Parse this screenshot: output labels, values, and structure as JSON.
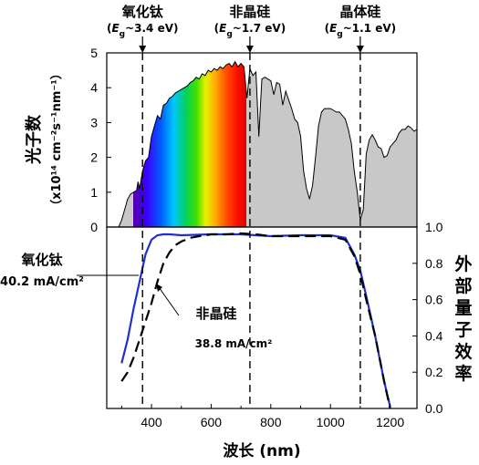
{
  "chart_data": [
    {
      "type": "area",
      "ylabel_main": "光子数",
      "ylabel_unit": "（x10¹⁴ cm⁻²s⁻¹nm⁻¹）",
      "xlim": [
        250,
        1290
      ],
      "ylim": [
        0,
        5
      ],
      "y_ticks": [
        "0",
        "1",
        "2",
        "3",
        "4",
        "5"
      ],
      "series": [
        {
          "x": [
            290,
            300,
            310,
            320,
            330,
            340,
            350,
            355,
            360,
            370,
            380,
            390,
            400,
            410,
            420,
            430,
            440,
            450,
            460,
            470,
            480,
            490,
            500,
            510,
            520,
            530,
            540,
            550,
            560,
            570,
            580,
            590,
            600,
            610,
            620,
            630,
            640,
            650,
            660,
            670,
            680,
            690,
            700,
            710,
            720,
            730,
            740,
            750,
            760,
            770,
            780,
            790,
            800,
            810,
            820,
            830,
            840,
            850,
            860,
            870,
            880,
            890,
            900,
            910,
            920,
            930,
            940,
            950,
            960,
            970,
            980,
            990,
            1000,
            1010,
            1020,
            1030,
            1040,
            1050,
            1060,
            1070,
            1080,
            1090,
            1100,
            1110,
            1120,
            1130,
            1140,
            1150,
            1160,
            1170,
            1180,
            1190,
            1200,
            1210,
            1220,
            1230,
            1240,
            1250,
            1260,
            1270,
            1280,
            1290
          ],
          "y": [
            0,
            0.2,
            0.5,
            0.8,
            0.95,
            1.0,
            1.05,
            1.3,
            1.1,
            1.6,
            1.9,
            2.0,
            2.6,
            2.9,
            3.2,
            3.1,
            3.5,
            3.55,
            3.7,
            3.75,
            3.85,
            3.9,
            3.95,
            4.0,
            4.05,
            4.15,
            4.2,
            4.3,
            4.25,
            4.4,
            4.35,
            4.5,
            4.45,
            4.55,
            4.5,
            4.6,
            4.55,
            4.65,
            4.7,
            4.6,
            4.75,
            4.6,
            4.7,
            4.6,
            3.7,
            4.55,
            4.35,
            4.45,
            2.6,
            4.25,
            4.3,
            4.25,
            4.2,
            3.8,
            4.15,
            4.1,
            3.5,
            3.9,
            3.65,
            3.4,
            3.1,
            3.0,
            2.6,
            1.6,
            1.1,
            0.8,
            1.2,
            2.0,
            2.9,
            3.3,
            3.4,
            3.4,
            3.4,
            3.35,
            3.3,
            3.3,
            3.2,
            3.1,
            2.8,
            2.4,
            1.6,
            1.0,
            0.2,
            0.5,
            2.1,
            2.5,
            2.65,
            2.5,
            2.3,
            2.25,
            2.0,
            2.05,
            2.3,
            2.4,
            2.5,
            2.7,
            2.8,
            2.8,
            2.9,
            2.85,
            2.75,
            2.8
          ]
        }
      ]
    },
    {
      "type": "line",
      "xlabel": "波长 (nm)",
      "ylabel": "外部量子效率",
      "xlim": [
        250,
        1290
      ],
      "ylim": [
        0,
        1.0
      ],
      "x_ticks": [
        "400",
        "600",
        "800",
        "1000",
        "1200"
      ],
      "y_ticks": [
        "0.0",
        "0.2",
        "0.4",
        "0.6",
        "0.8",
        "1.0"
      ],
      "series": [
        {
          "name": "氧化钛",
          "x": [
            300,
            320,
            340,
            360,
            380,
            400,
            420,
            440,
            460,
            500,
            600,
            700,
            800,
            900,
            1000,
            1050,
            1080,
            1100,
            1120,
            1150,
            1180,
            1200
          ],
          "y": [
            0.25,
            0.38,
            0.55,
            0.7,
            0.85,
            0.93,
            0.955,
            0.96,
            0.96,
            0.955,
            0.96,
            0.96,
            0.95,
            0.955,
            0.955,
            0.94,
            0.85,
            0.76,
            0.62,
            0.4,
            0.15,
            0.01
          ]
        },
        {
          "name": "非晶硅",
          "x": [
            300,
            320,
            340,
            360,
            380,
            400,
            420,
            440,
            460,
            480,
            500,
            530,
            560,
            600,
            650,
            700,
            750,
            800,
            900,
            1000,
            1050,
            1080,
            1100,
            1120,
            1150,
            1180,
            1200
          ],
          "y": [
            0.15,
            0.2,
            0.28,
            0.38,
            0.48,
            0.58,
            0.7,
            0.8,
            0.86,
            0.9,
            0.92,
            0.94,
            0.95,
            0.96,
            0.96,
            0.965,
            0.96,
            0.95,
            0.95,
            0.95,
            0.93,
            0.84,
            0.74,
            0.6,
            0.4,
            0.15,
            0.0
          ]
        }
      ]
    }
  ],
  "markers": [
    {
      "name": "氧化钛",
      "eg": "~3.4 eV",
      "x": 370
    },
    {
      "name": "非晶硅",
      "eg": "~1.7 eV",
      "x": 730
    },
    {
      "name": "晶体硅",
      "eg": "~1.1 eV",
      "x": 1100
    }
  ],
  "annotations": {
    "tio2_name": "氧化钛",
    "tio2_current": "40.2 mA/cm²",
    "asi_name": "非晶硅",
    "asi_current": "38.8 mA/cm²"
  },
  "colors": {
    "tio2_curve": "#1f2fd6",
    "asi_curve": "#000000",
    "tio2_label": "#1f3fbf",
    "spectrum_fill": "#c8c8c8"
  }
}
